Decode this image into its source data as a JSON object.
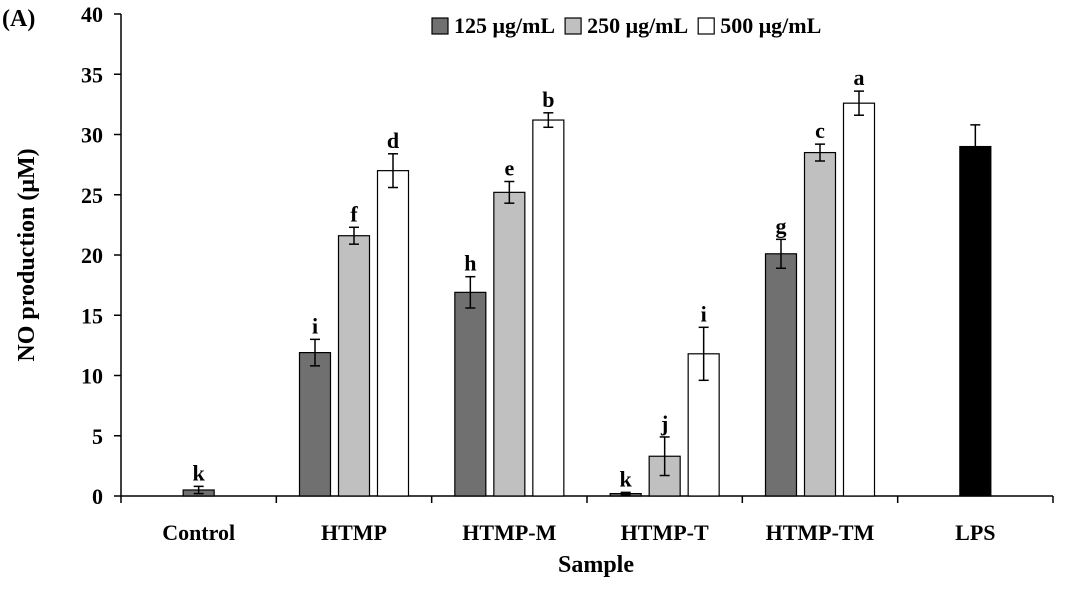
{
  "panel_label": "(A)",
  "chart_data": {
    "type": "bar",
    "xlabel": "Sample",
    "ylabel": "NO production (μM)",
    "ylim": [
      0,
      40
    ],
    "yticks": [
      0,
      5,
      10,
      15,
      20,
      25,
      30,
      35,
      40
    ],
    "grid": false,
    "legend_position": "top-right",
    "categories": [
      "Control",
      "HTMP",
      "HTMP-M",
      "HTMP-T",
      "HTMP-TM",
      "LPS"
    ],
    "series": [
      {
        "name": "125 μg/mL",
        "color": "#707070",
        "values": [
          0.5,
          11.9,
          16.9,
          0.2,
          20.1,
          null
        ],
        "errors": [
          0.3,
          1.1,
          1.3,
          0.1,
          1.2,
          null
        ],
        "letters": [
          "k",
          "i",
          "h",
          "k",
          "g",
          null
        ]
      },
      {
        "name": "250 μg/mL",
        "color": "#c0c0c0",
        "values": [
          null,
          21.6,
          25.2,
          3.3,
          28.5,
          null
        ],
        "errors": [
          null,
          0.7,
          0.9,
          1.6,
          0.7,
          null
        ],
        "letters": [
          null,
          "f",
          "e",
          "j",
          "c",
          null
        ]
      },
      {
        "name": "500 μg/mL",
        "color": "#ffffff",
        "values": [
          null,
          27.0,
          31.2,
          11.8,
          32.6,
          null
        ],
        "errors": [
          null,
          1.4,
          0.6,
          2.2,
          1.0,
          null
        ],
        "letters": [
          null,
          "d",
          "b",
          "i",
          "a",
          null
        ]
      }
    ],
    "extra_bars": [
      {
        "category": "LPS",
        "value": 29.0,
        "error": 1.8,
        "color": "#000000"
      }
    ]
  }
}
